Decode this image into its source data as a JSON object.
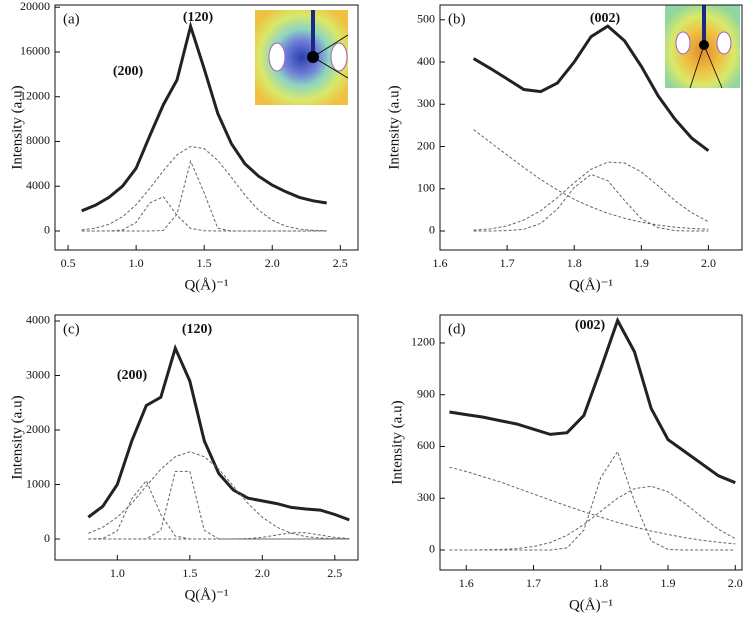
{
  "chart_data": [
    {
      "type": "line",
      "panel": "(a)",
      "annotations": [
        "(120)",
        "(200)"
      ],
      "x_label": "Q(Å)⁻¹",
      "y_label": "Intensity (a.u)",
      "x": [
        0.6,
        0.7,
        0.8,
        0.9,
        1.0,
        1.1,
        1.2,
        1.3,
        1.4,
        1.5,
        1.6,
        1.7,
        1.8,
        1.9,
        2.0,
        2.1,
        2.2,
        2.3,
        2.4
      ],
      "series": [
        {
          "color": "#222222",
          "line_style": "solid",
          "values": [
            1800,
            2300,
            3000,
            4000,
            5600,
            8500,
            11300,
            13500,
            18300,
            14500,
            10500,
            7800,
            6000,
            4900,
            4100,
            3500,
            3000,
            2700,
            2500
          ]
        },
        {
          "color": "#666666",
          "line_style": "dashed",
          "values": [
            95,
            250,
            600,
            1270,
            2340,
            3800,
            5400,
            6800,
            7550,
            7360,
            6300,
            4800,
            3200,
            1860,
            960,
            430,
            170,
            60,
            25
          ]
        },
        {
          "color": "#666666",
          "line_style": "dashed",
          "values": [
            0,
            0,
            0,
            90,
            760,
            2500,
            3060,
            1380,
            230,
            15,
            0,
            0,
            0,
            0,
            0,
            0,
            0,
            0,
            0
          ]
        },
        {
          "color": "#666666",
          "line_style": "dashed",
          "values": [
            0,
            0,
            0,
            0,
            0,
            0,
            50,
            1500,
            6240,
            3400,
            240,
            0,
            0,
            0,
            0,
            0,
            0,
            0,
            0
          ]
        }
      ],
      "xlim": [
        0.404,
        2.63
      ],
      "ylim": [
        -1700,
        20200
      ],
      "xticks": [
        0.5,
        {
          "value": 1.0,
          "label": "1.0"
        },
        1.5,
        {
          "value": 2.0,
          "label": "2.0"
        },
        2.5
      ],
      "yticks": [
        0,
        4000,
        8000,
        12000,
        16000,
        20000
      ]
    },
    {
      "type": "line",
      "panel": "(b)",
      "annotations": [
        "(002)"
      ],
      "x_label": "Q(Å)⁻¹",
      "y_label": "Intensity (a.u)",
      "x": [
        1.65,
        1.675,
        1.7,
        1.725,
        1.75,
        1.775,
        1.8,
        1.825,
        1.85,
        1.875,
        1.9,
        1.925,
        1.95,
        1.975,
        2.0
      ],
      "series": [
        {
          "color": "#222222",
          "line_style": "solid",
          "values": [
            408,
            385,
            360,
            335,
            330,
            350,
            400,
            460,
            485,
            450,
            390,
            320,
            265,
            220,
            190
          ]
        },
        {
          "color": "#666666",
          "line_style": "dashed",
          "values": [
            240,
            210,
            180,
            150,
            122,
            97,
            75,
            57,
            42,
            30,
            21,
            14,
            9,
            6,
            4
          ]
        },
        {
          "color": "#666666",
          "line_style": "dashed",
          "values": [
            0,
            0,
            1,
            4,
            18,
            52,
            103,
            134,
            119,
            72,
            29,
            8,
            1,
            0,
            0
          ]
        },
        {
          "color": "#666666",
          "line_style": "dashed",
          "values": [
            2,
            5,
            12,
            26,
            48,
            79,
            114,
            146,
            163,
            161,
            140,
            107,
            72,
            43,
            22
          ]
        }
      ],
      "xlim": [
        1.6,
        2.05
      ],
      "ylim": [
        -45,
        535
      ],
      "xticks": [
        1.6,
        1.7,
        1.8,
        1.9,
        {
          "value": 2.0,
          "label": "2.0"
        }
      ],
      "yticks": [
        0,
        100,
        200,
        300,
        400,
        500
      ]
    },
    {
      "type": "line",
      "panel": "(c)",
      "annotations": [
        "(120)",
        "(200)"
      ],
      "x_label": "Q(Å)⁻¹",
      "y_label": "Intensity (a.u)",
      "x": [
        0.8,
        0.9,
        1.0,
        1.1,
        1.2,
        1.3,
        1.4,
        1.5,
        1.6,
        1.7,
        1.8,
        1.9,
        2.0,
        2.1,
        2.2,
        2.3,
        2.4,
        2.5,
        2.6
      ],
      "series": [
        {
          "color": "#222222",
          "line_style": "solid",
          "values": [
            400,
            600,
            1000,
            1800,
            2450,
            2600,
            3500,
            2900,
            1800,
            1200,
            900,
            750,
            700,
            650,
            580,
            550,
            530,
            450,
            350
          ]
        },
        {
          "color": "#666666",
          "line_style": "dashed",
          "values": [
            0,
            9,
            150,
            740,
            1070,
            450,
            55,
            0,
            0,
            0,
            0,
            0,
            0,
            0,
            0,
            0,
            0,
            0,
            0
          ]
        },
        {
          "color": "#666666",
          "line_style": "dashed",
          "values": [
            0,
            0,
            0,
            0,
            3,
            160,
            1240,
            1240,
            160,
            0,
            0,
            0,
            0,
            0,
            0,
            0,
            0,
            0,
            0
          ]
        },
        {
          "color": "#666666",
          "line_style": "dashed",
          "values": [
            105,
            216,
            400,
            655,
            970,
            1280,
            1510,
            1600,
            1510,
            1280,
            970,
            655,
            400,
            216,
            105,
            45,
            18,
            6,
            2
          ]
        },
        {
          "color": "#666666",
          "line_style": "dashed",
          "values": [
            0,
            0,
            0,
            0,
            0,
            0,
            0,
            0,
            0,
            0,
            0,
            8,
            30,
            73,
            114,
            114,
            73,
            30,
            8
          ]
        }
      ],
      "xlim": [
        0.57,
        2.66
      ],
      "ylim": [
        -385,
        4110
      ],
      "xticks": [
        {
          "value": 1.0,
          "label": "1.0"
        },
        1.5,
        {
          "value": 2.0,
          "label": "2.0"
        },
        2.5
      ],
      "yticks": [
        0,
        1000,
        2000,
        3000,
        4000
      ]
    },
    {
      "type": "line",
      "panel": "(d)",
      "annotations": [
        "(002)"
      ],
      "x_label": "Q(Å)⁻¹",
      "y_label": "Intensity (a.u)",
      "x": [
        1.575,
        1.6,
        1.625,
        1.65,
        1.675,
        1.7,
        1.725,
        1.75,
        1.775,
        1.8,
        1.825,
        1.85,
        1.875,
        1.9,
        1.925,
        1.95,
        1.975,
        2.0
      ],
      "series": [
        {
          "color": "#222222",
          "line_style": "solid",
          "values": [
            800,
            785,
            770,
            750,
            730,
            700,
            670,
            680,
            780,
            1050,
            1330,
            1150,
            820,
            640,
            570,
            500,
            430,
            390
          ]
        },
        {
          "color": "#666666",
          "line_style": "dashed",
          "values": [
            480,
            455,
            425,
            395,
            360,
            325,
            290,
            255,
            222,
            190,
            160,
            133,
            110,
            90,
            72,
            57,
            45,
            35
          ]
        },
        {
          "color": "#666666",
          "line_style": "dashed",
          "values": [
            0,
            0,
            0,
            0,
            0,
            0,
            0,
            12,
            115,
            420,
            570,
            282,
            52,
            3,
            0,
            0,
            0,
            0
          ]
        },
        {
          "color": "#666666",
          "line_style": "dashed",
          "values": [
            0,
            0,
            1,
            3,
            8,
            20,
            43,
            85,
            148,
            224,
            300,
            355,
            370,
            337,
            270,
            193,
            120,
            66
          ]
        }
      ],
      "xlim": [
        1.561,
        2.01
      ],
      "ylim": [
        -116,
        1362
      ],
      "xticks": [
        1.6,
        1.7,
        1.8,
        1.9,
        {
          "value": 2.0,
          "label": "2.0"
        }
      ],
      "yticks": [
        0,
        300,
        600,
        900,
        1200
      ]
    }
  ]
}
